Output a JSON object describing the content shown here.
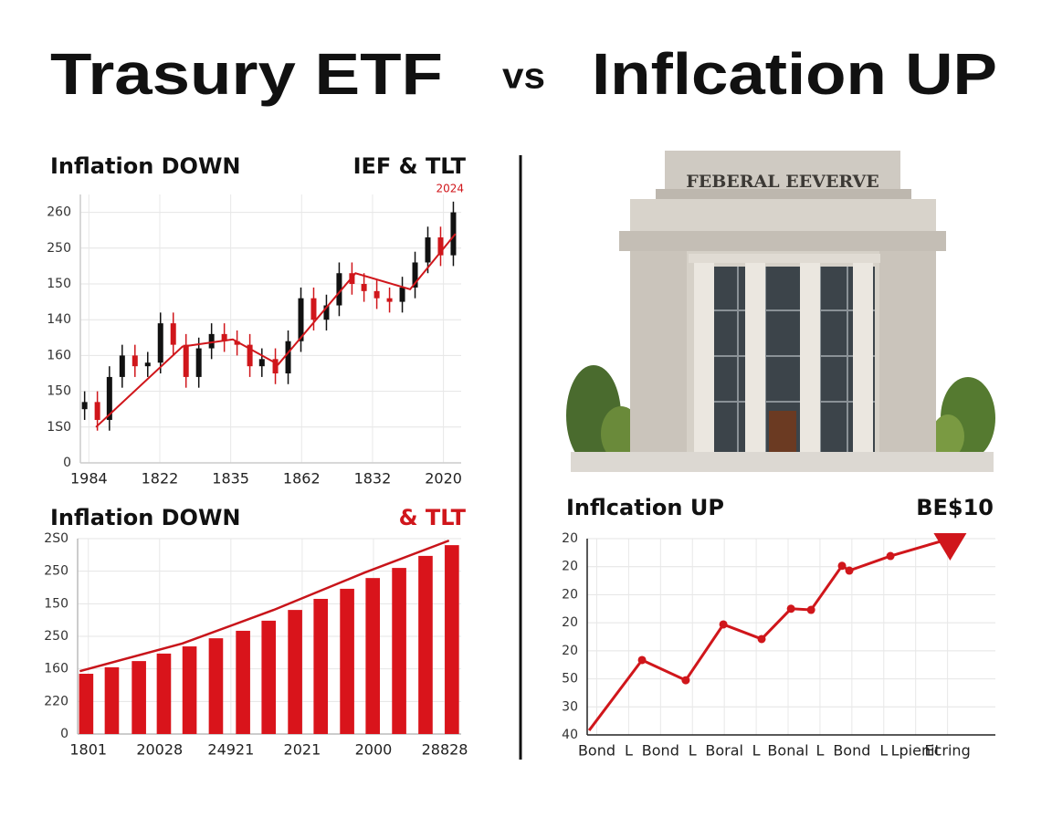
{
  "header": {
    "title_left": "Trasury ETF",
    "vs": "vs",
    "title_right": "Inflcation UP"
  },
  "building": {
    "inscription": "FEBERAL EEVERVE"
  },
  "chart_data": [
    {
      "type": "candlestick",
      "title": "Inflation DOWN",
      "subtitle": "IEF & TLT",
      "annotation": "2024",
      "up_color": "#111111",
      "down_color": "#d0161b",
      "line_color": "#d0161b",
      "grid": true,
      "xlim": [
        -0.12,
        5.25
      ],
      "ylim": [
        0,
        7.5
      ],
      "xticks": [
        {
          "value": 0,
          "label": "1984"
        },
        {
          "value": 1,
          "label": "1822"
        },
        {
          "value": 2,
          "label": "1835"
        },
        {
          "value": 3,
          "label": "1862"
        },
        {
          "value": 4,
          "label": "1832"
        },
        {
          "value": 5,
          "label": "2020"
        }
      ],
      "yticks": [
        {
          "value": 0,
          "label": "0"
        },
        {
          "value": 1,
          "label": "1S0"
        },
        {
          "value": 2,
          "label": "150"
        },
        {
          "value": 3,
          "label": "160"
        },
        {
          "value": 4,
          "label": "140"
        },
        {
          "value": 5,
          "label": "150"
        },
        {
          "value": 6,
          "label": "250"
        },
        {
          "value": 7,
          "label": "260"
        }
      ],
      "x": [
        -0.06,
        0.12,
        0.29,
        0.47,
        0.65,
        0.83,
        1.01,
        1.19,
        1.37,
        1.55,
        1.73,
        1.91,
        2.09,
        2.27,
        2.44,
        2.63,
        2.81,
        2.99,
        3.17,
        3.35,
        3.53,
        3.71,
        3.88,
        4.06,
        4.24,
        4.42,
        4.6,
        4.78,
        4.96,
        5.14
      ],
      "open": [
        1.5,
        1.7,
        1.2,
        2.4,
        3.0,
        2.7,
        2.8,
        3.9,
        3.3,
        2.4,
        3.2,
        3.6,
        3.4,
        3.3,
        2.7,
        2.9,
        2.5,
        3.4,
        4.6,
        4.0,
        4.4,
        5.3,
        5.0,
        4.8,
        4.6,
        4.5,
        4.9,
        5.6,
        6.3,
        5.8
      ],
      "high": [
        2.0,
        2.0,
        2.7,
        3.3,
        3.3,
        3.1,
        4.2,
        4.2,
        3.6,
        3.5,
        3.9,
        3.9,
        3.7,
        3.6,
        3.2,
        3.2,
        3.7,
        4.9,
        4.9,
        4.7,
        5.6,
        5.6,
        5.3,
        5.1,
        4.9,
        5.2,
        5.9,
        6.6,
        6.6,
        7.3
      ],
      "low": [
        1.2,
        0.9,
        0.9,
        2.1,
        2.4,
        2.4,
        2.5,
        3.0,
        2.1,
        2.1,
        2.9,
        3.1,
        3.0,
        2.4,
        2.4,
        2.2,
        2.2,
        3.1,
        3.7,
        3.7,
        4.1,
        4.7,
        4.5,
        4.3,
        4.2,
        4.2,
        4.6,
        5.3,
        5.5,
        5.5
      ],
      "close": [
        1.7,
        1.2,
        2.4,
        3.0,
        2.7,
        2.8,
        3.9,
        3.3,
        2.4,
        3.2,
        3.6,
        3.4,
        3.3,
        2.7,
        2.9,
        2.5,
        3.4,
        4.6,
        4.0,
        4.4,
        5.3,
        5.0,
        4.8,
        4.6,
        4.5,
        4.9,
        5.6,
        6.3,
        5.8,
        7.0
      ],
      "trend_x": [
        0.1,
        1.32,
        2.03,
        2.67,
        3.76,
        4.53,
        5.17
      ],
      "trend_y": [
        1.0,
        3.25,
        3.45,
        2.75,
        5.3,
        4.85,
        6.4
      ]
    },
    {
      "type": "bar",
      "title": "Inflation DOWN",
      "subtitle": "& TLT",
      "subtitle_color": "#d0161b",
      "color": "#d9141b",
      "line_color": "#c8141a",
      "grid": true,
      "xlim": [
        -0.15,
        5.23
      ],
      "ylim": [
        0,
        6
      ],
      "xticks": [
        {
          "value": 0,
          "label": "1801"
        },
        {
          "value": 1,
          "label": "20028"
        },
        {
          "value": 2,
          "label": "24921"
        },
        {
          "value": 3,
          "label": "2021"
        },
        {
          "value": 4,
          "label": "2000"
        },
        {
          "value": 5,
          "label": "28828"
        }
      ],
      "yticks": [
        {
          "value": 0,
          "label": "0"
        },
        {
          "value": 1,
          "label": "220"
        },
        {
          "value": 2,
          "label": "160"
        },
        {
          "value": 3,
          "label": "250"
        },
        {
          "value": 4,
          "label": "150"
        },
        {
          "value": 5,
          "label": "250"
        },
        {
          "value": 6,
          "label": "2S0"
        }
      ],
      "x": [
        -0.03,
        0.33,
        0.71,
        1.06,
        1.42,
        1.79,
        2.17,
        2.53,
        2.9,
        3.26,
        3.63,
        3.99,
        4.36,
        4.73,
        5.1
      ],
      "values": [
        1.85,
        2.05,
        2.24,
        2.47,
        2.69,
        2.94,
        3.17,
        3.48,
        3.81,
        4.15,
        4.46,
        4.79,
        5.1,
        5.47,
        5.8
      ],
      "curve_x": [
        -0.12,
        1.32,
        2.6,
        3.88,
        5.06
      ],
      "curve_y": [
        1.93,
        2.78,
        3.81,
        4.96,
        5.94
      ]
    },
    {
      "type": "line",
      "title": "Inflcation UP",
      "subtitle": "BE$10",
      "color": "#d0161b",
      "grid": true,
      "xlim": [
        -0.3,
        12.5
      ],
      "ylim": [
        0,
        7
      ],
      "xticks": [
        {
          "value": 0,
          "label": "Bond"
        },
        {
          "value": 1,
          "label": "L"
        },
        {
          "value": 2,
          "label": "Bond"
        },
        {
          "value": 3,
          "label": "L"
        },
        {
          "value": 4,
          "label": "Boral"
        },
        {
          "value": 5,
          "label": "L"
        },
        {
          "value": 6,
          "label": "Bonal"
        },
        {
          "value": 7,
          "label": "L"
        },
        {
          "value": 8,
          "label": "Bond"
        },
        {
          "value": 9,
          "label": "L"
        },
        {
          "value": 10,
          "label": "Lpienit"
        },
        {
          "value": 11,
          "label": "Ecring"
        }
      ],
      "yticks": [
        {
          "value": 0,
          "label": "40"
        },
        {
          "value": 1,
          "label": "30"
        },
        {
          "value": 2,
          "label": "50"
        },
        {
          "value": 3,
          "label": "20"
        },
        {
          "value": 4,
          "label": "20"
        },
        {
          "value": 5,
          "label": "20"
        },
        {
          "value": 6,
          "label": "20"
        },
        {
          "value": 7,
          "label": "20"
        }
      ],
      "x": [
        -0.24,
        1.42,
        2.79,
        3.97,
        5.17,
        6.09,
        6.72,
        7.69,
        7.92,
        9.21,
        11.08
      ],
      "values": [
        0.16,
        2.67,
        1.95,
        3.94,
        3.42,
        4.5,
        4.46,
        6.03,
        5.86,
        6.38,
        7.0
      ]
    }
  ]
}
